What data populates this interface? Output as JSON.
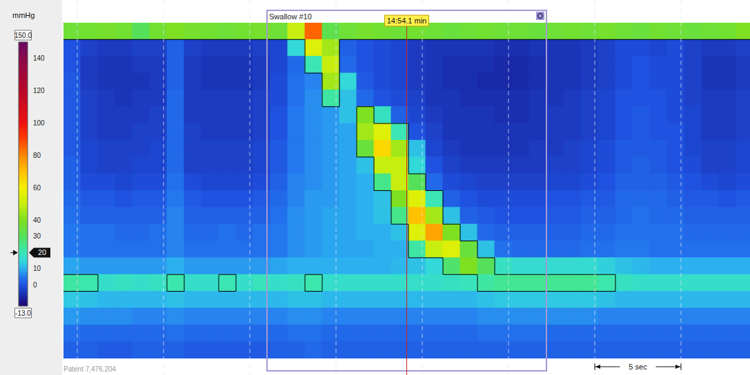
{
  "chart_data": {
    "type": "heatmap",
    "tick_labels": false,
    "grid": true,
    "xlim": [
      0,
      39.8
    ],
    "xticks": [
      0.8,
      5.8,
      10.8,
      15.8,
      20.8,
      25.8,
      30.8,
      35.8
    ],
    "ylim": [
      0,
      20
    ],
    "cells": {
      "x": [
        0,
        1,
        2,
        3,
        4,
        5,
        6,
        7,
        8,
        9,
        10,
        11,
        12,
        13,
        14,
        15,
        16,
        17,
        18,
        19,
        20,
        21,
        22,
        23,
        24,
        25,
        26,
        27,
        28,
        29,
        30,
        31,
        32,
        33,
        34,
        35,
        36,
        37,
        38,
        39
      ],
      "y": [
        0,
        1,
        2,
        3,
        4,
        5,
        6,
        7,
        8,
        9,
        10,
        11,
        12,
        13,
        14,
        15,
        16,
        17,
        18,
        19
      ],
      "z": [
        [
          36,
          37,
          38,
          37,
          30,
          37,
          40,
          38,
          37,
          36,
          37,
          38,
          36,
          50,
          85,
          32,
          36,
          38,
          37,
          36,
          37,
          36,
          35,
          36,
          37,
          36,
          36,
          35,
          36,
          37,
          36,
          38,
          36,
          35,
          37,
          36,
          35,
          36,
          37,
          40
        ],
        [
          0,
          -3,
          -4,
          -4,
          -3,
          -3,
          2,
          -3,
          -4,
          -4,
          -4,
          -3,
          -2,
          15,
          55,
          45,
          2,
          0,
          -1,
          -2,
          -4,
          -5,
          -5,
          -5,
          -5,
          -6,
          -6,
          -5,
          -5,
          -5,
          -4,
          -3,
          -1,
          -1,
          -2,
          -1,
          -3,
          -4,
          -4,
          -3
        ],
        [
          0,
          -4,
          -5,
          -5,
          -4,
          -4,
          2,
          -4,
          -5,
          -5,
          -5,
          -4,
          -2,
          3,
          20,
          50,
          3,
          0,
          -1,
          -2,
          -4,
          -5,
          -6,
          -6,
          -6,
          -7,
          -7,
          -6,
          -5,
          -5,
          -4,
          -3,
          -1,
          0,
          -1,
          -1,
          -3,
          -5,
          -5,
          -4
        ],
        [
          1,
          -4,
          -5,
          -5,
          -5,
          -4,
          2,
          -4,
          -5,
          -5,
          -5,
          -4,
          -1,
          4,
          6,
          45,
          15,
          1,
          -1,
          -2,
          -4,
          -5,
          -6,
          -6,
          -7,
          -7,
          -7,
          -6,
          -5,
          -5,
          -4,
          -3,
          -1,
          0,
          -1,
          -1,
          -3,
          -5,
          -5,
          -4
        ],
        [
          1,
          -3,
          -4,
          -5,
          -4,
          -4,
          3,
          -4,
          -4,
          -4,
          -4,
          -3,
          -1,
          4,
          7,
          22,
          12,
          3,
          0,
          -1,
          -3,
          -5,
          -5,
          -6,
          -6,
          -6,
          -6,
          -5,
          -5,
          -4,
          -3,
          -2,
          0,
          0,
          0,
          -1,
          -3,
          -4,
          -4,
          -3
        ],
        [
          1,
          -3,
          -4,
          -4,
          -4,
          -3,
          3,
          -4,
          -4,
          -4,
          -4,
          -3,
          0,
          5,
          7,
          8,
          12,
          40,
          18,
          2,
          -2,
          -4,
          -5,
          -5,
          -5,
          -6,
          -6,
          -5,
          -4,
          -4,
          -3,
          -2,
          0,
          1,
          0,
          -1,
          -2,
          -4,
          -4,
          -3
        ],
        [
          1,
          -3,
          -4,
          -4,
          -3,
          -3,
          3,
          -3,
          -4,
          -4,
          -4,
          -3,
          0,
          5,
          7,
          8,
          9,
          45,
          55,
          20,
          0,
          -3,
          -5,
          -5,
          -5,
          -5,
          -5,
          -5,
          -4,
          -4,
          -3,
          -2,
          0,
          1,
          0,
          0,
          -2,
          -4,
          -4,
          -3
        ],
        [
          1,
          -2,
          -3,
          -3,
          -3,
          -2,
          3,
          -3,
          -3,
          -3,
          -3,
          -2,
          1,
          5,
          7,
          8,
          9,
          35,
          65,
          45,
          12,
          -2,
          -4,
          -5,
          -5,
          -5,
          -5,
          -4,
          -4,
          -3,
          -2,
          -1,
          1,
          1,
          1,
          0,
          -2,
          -3,
          -3,
          -2
        ],
        [
          2,
          -2,
          -3,
          -3,
          -2,
          -2,
          3,
          -3,
          -3,
          -3,
          -3,
          -2,
          1,
          5,
          7,
          8,
          9,
          12,
          50,
          50,
          15,
          0,
          -3,
          -4,
          -4,
          -4,
          -4,
          -4,
          -3,
          -3,
          -2,
          -1,
          1,
          2,
          1,
          0,
          -1,
          -3,
          -3,
          -2
        ],
        [
          2,
          -1,
          -1,
          -2,
          -1,
          -1,
          4,
          -1,
          -2,
          -2,
          -2,
          -1,
          2,
          6,
          7,
          8,
          9,
          10,
          25,
          50,
          30,
          3,
          -1,
          -2,
          -3,
          -3,
          -3,
          -3,
          -2,
          -2,
          -1,
          0,
          2,
          2,
          2,
          1,
          0,
          -1,
          -2,
          -1
        ],
        [
          3,
          1,
          1,
          0,
          1,
          1,
          5,
          1,
          0,
          0,
          0,
          1,
          3,
          6,
          8,
          8,
          9,
          10,
          12,
          40,
          55,
          20,
          2,
          0,
          -1,
          -1,
          -1,
          -1,
          0,
          0,
          1,
          1,
          3,
          3,
          3,
          2,
          1,
          1,
          0,
          1
        ],
        [
          4,
          2,
          2,
          2,
          2,
          2,
          6,
          2,
          2,
          2,
          2,
          2,
          4,
          7,
          8,
          9,
          9,
          10,
          12,
          25,
          70,
          45,
          12,
          2,
          1,
          0,
          0,
          0,
          1,
          1,
          2,
          2,
          3,
          4,
          3,
          3,
          2,
          2,
          2,
          2
        ],
        [
          5,
          4,
          4,
          3,
          3,
          4,
          6,
          3,
          3,
          4,
          3,
          4,
          5,
          7,
          8,
          9,
          9,
          10,
          10,
          12,
          55,
          75,
          40,
          12,
          3,
          2,
          2,
          2,
          2,
          2,
          3,
          3,
          4,
          4,
          4,
          4,
          3,
          3,
          3,
          3
        ],
        [
          5,
          4,
          4,
          4,
          4,
          4,
          6,
          4,
          4,
          4,
          4,
          4,
          5,
          7,
          8,
          9,
          9,
          9,
          10,
          10,
          22,
          50,
          55,
          35,
          12,
          4,
          3,
          3,
          3,
          3,
          4,
          4,
          5,
          5,
          4,
          4,
          4,
          4,
          4,
          4
        ],
        [
          9,
          8,
          8,
          8,
          8,
          8,
          10,
          8,
          8,
          8,
          8,
          8,
          9,
          10,
          10,
          10,
          10,
          10,
          10,
          11,
          12,
          15,
          28,
          40,
          30,
          18,
          16,
          16,
          16,
          16,
          16,
          14,
          12,
          11,
          10,
          10,
          10,
          10,
          10,
          10
        ],
        [
          22,
          21,
          17,
          18,
          17,
          18,
          21,
          17,
          17,
          20,
          17,
          19,
          17,
          18,
          21,
          17,
          17,
          17,
          17,
          17,
          17,
          17,
          18,
          19,
          22,
          24,
          24,
          24,
          24,
          24,
          24,
          21,
          18,
          17,
          17,
          17,
          17,
          17,
          17,
          17
        ],
        [
          13,
          12,
          11,
          11,
          11,
          11,
          12,
          11,
          11,
          11,
          11,
          11,
          11,
          12,
          12,
          11,
          11,
          11,
          11,
          11,
          11,
          11,
          11,
          11,
          12,
          13,
          13,
          13,
          13,
          13,
          13,
          12,
          11,
          11,
          11,
          11,
          11,
          11,
          11,
          11
        ],
        [
          8,
          7,
          7,
          7,
          6,
          6,
          7,
          6,
          6,
          6,
          6,
          6,
          6,
          7,
          7,
          6,
          6,
          6,
          6,
          6,
          6,
          6,
          6,
          6,
          7,
          7,
          7,
          7,
          7,
          7,
          7,
          6,
          6,
          6,
          6,
          6,
          6,
          6,
          6,
          6
        ],
        [
          4,
          3,
          3,
          3,
          3,
          3,
          4,
          3,
          3,
          3,
          3,
          3,
          3,
          4,
          4,
          3,
          3,
          3,
          3,
          3,
          3,
          3,
          3,
          3,
          4,
          4,
          4,
          4,
          3,
          3,
          3,
          3,
          3,
          3,
          3,
          3,
          3,
          3,
          3,
          3
        ],
        [
          2,
          2,
          1,
          1,
          2,
          2,
          2,
          1,
          1,
          1,
          1,
          1,
          2,
          2,
          3,
          2,
          2,
          2,
          2,
          2,
          2,
          2,
          2,
          2,
          2,
          2,
          2,
          2,
          2,
          2,
          2,
          2,
          2,
          2,
          2,
          2,
          2,
          2,
          2,
          2
        ]
      ]
    },
    "isobar": 20,
    "colorbar": {
      "unit": "mmHg",
      "range": [
        {
          "value": -13,
          "label": "-13.0"
        },
        {
          "value": 150,
          "label": "150.0"
        }
      ],
      "ticks": [
        140,
        120,
        100,
        80,
        60,
        40,
        30,
        10,
        0
      ],
      "colorscale": [
        [
          -13,
          "#1b0570"
        ],
        [
          -6,
          "#1a2fb0"
        ],
        [
          0,
          "#1f52e0"
        ],
        [
          5,
          "#2478ef"
        ],
        [
          10,
          "#2cb0f0"
        ],
        [
          15,
          "#33d8d8"
        ],
        [
          20,
          "#3be6b4"
        ],
        [
          25,
          "#45e68a"
        ],
        [
          30,
          "#55e05a"
        ],
        [
          40,
          "#7ee020"
        ],
        [
          50,
          "#c8ee10"
        ],
        [
          60,
          "#f4f000"
        ],
        [
          70,
          "#ffc000"
        ],
        [
          80,
          "#ff8800"
        ],
        [
          90,
          "#ff4000"
        ],
        [
          100,
          "#ee1010"
        ],
        [
          120,
          "#b80828"
        ],
        [
          140,
          "#8a0a4a"
        ],
        [
          150,
          "#6a0a60"
        ]
      ]
    },
    "cursor": {
      "x": 19.9,
      "label": "14:54.1 min"
    },
    "swallow": {
      "label": "Swallow #10",
      "x": [
        11.8,
        28.0
      ]
    },
    "scale_bar": {
      "length": 5,
      "label": "5 sec"
    },
    "footer": "Patent 7,476,204"
  }
}
